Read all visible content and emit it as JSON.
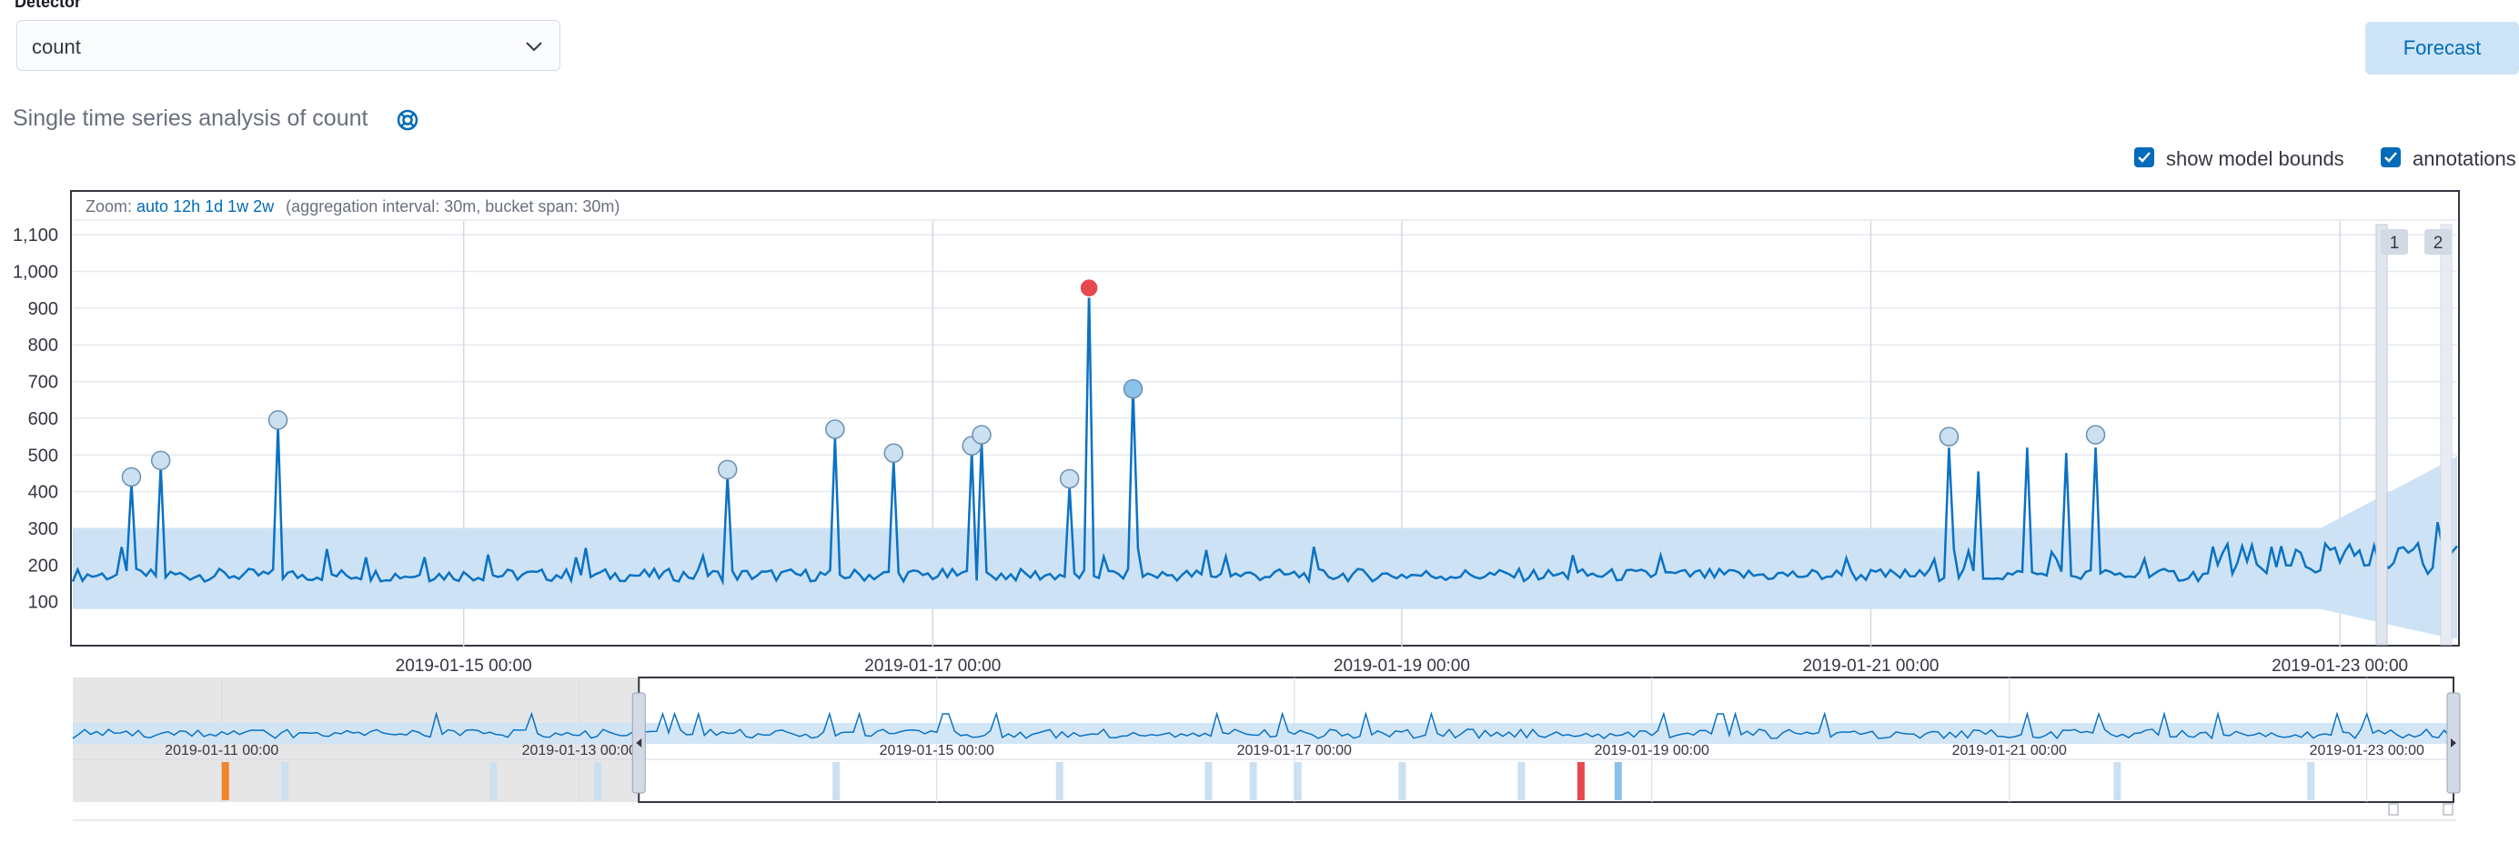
{
  "detector": {
    "label": "Detector",
    "value": "count"
  },
  "forecast_label": "Forecast",
  "page_title": "Single time series analysis of count",
  "checkboxes": {
    "model_bounds": "show model bounds",
    "annotations": "annotations"
  },
  "zoom": {
    "prefix": "Zoom:",
    "options": [
      "auto",
      "12h",
      "1d",
      "1w",
      "2w"
    ],
    "suffix": "(aggregation interval: 30m, bucket span: 30m)"
  },
  "annotation_badges": [
    "1",
    "2"
  ],
  "colors": {
    "line": "#0b72c4",
    "bounds": "#cde3f5",
    "critical": "#e7474e",
    "major": "#f0852c",
    "anomaly_light": "#cbe0f0",
    "anomaly_mid": "#8bc2e9",
    "accent": "#006bb8"
  },
  "chart_data": {
    "type": "line",
    "title": "",
    "xlabel": "",
    "ylabel": "",
    "yticks": [
      100,
      200,
      300,
      400,
      500,
      600,
      700,
      800,
      900,
      1000,
      1100
    ],
    "ylim": [
      0,
      1150
    ],
    "xlim": [
      "2019-01-13T08:00",
      "2019-01-23T12:00"
    ],
    "xticks": [
      "2019-01-15 00:00",
      "2019-01-17 00:00",
      "2019-01-19 00:00",
      "2019-01-21 00:00",
      "2019-01-23 00:00"
    ],
    "grid": true,
    "baseline": 165,
    "model_bounds": {
      "lower": 80,
      "upper": 300
    },
    "spikes": [
      {
        "t": "2019-01-13T14:00",
        "v": 425
      },
      {
        "t": "2019-01-13T17:00",
        "v": 470
      },
      {
        "t": "2019-01-14T05:00",
        "v": 580
      },
      {
        "t": "2019-01-16T03:00",
        "v": 445
      },
      {
        "t": "2019-01-16T14:00",
        "v": 550
      },
      {
        "t": "2019-01-16T20:00",
        "v": 485
      },
      {
        "t": "2019-01-17T04:00",
        "v": 510
      },
      {
        "t": "2019-01-17T05:00",
        "v": 540
      },
      {
        "t": "2019-01-17T14:00",
        "v": 415
      },
      {
        "t": "2019-01-17T16:00",
        "v": 950
      },
      {
        "t": "2019-01-17T20:30",
        "v": 685
      },
      {
        "t": "2019-01-21T08:00",
        "v": 520
      },
      {
        "t": "2019-01-21T11:00",
        "v": 455
      },
      {
        "t": "2019-01-21T16:00",
        "v": 520
      },
      {
        "t": "2019-01-21T20:00",
        "v": 505
      },
      {
        "t": "2019-01-21T23:00",
        "v": 520
      }
    ],
    "anomaly_markers": [
      {
        "t": "2019-01-13T14:00",
        "v": 440,
        "severity": "low"
      },
      {
        "t": "2019-01-13T17:00",
        "v": 485,
        "severity": "low"
      },
      {
        "t": "2019-01-14T05:00",
        "v": 595,
        "severity": "low"
      },
      {
        "t": "2019-01-16T03:00",
        "v": 460,
        "severity": "low"
      },
      {
        "t": "2019-01-16T14:00",
        "v": 570,
        "severity": "low"
      },
      {
        "t": "2019-01-16T20:00",
        "v": 505,
        "severity": "low"
      },
      {
        "t": "2019-01-17T04:00",
        "v": 525,
        "severity": "low"
      },
      {
        "t": "2019-01-17T05:00",
        "v": 555,
        "severity": "low"
      },
      {
        "t": "2019-01-17T14:00",
        "v": 435,
        "severity": "low"
      },
      {
        "t": "2019-01-17T16:00",
        "v": 955,
        "severity": "critical"
      },
      {
        "t": "2019-01-17T20:30",
        "v": 680,
        "severity": "warning"
      },
      {
        "t": "2019-01-21T08:00",
        "v": 550,
        "severity": "low"
      },
      {
        "t": "2019-01-21T23:00",
        "v": 555,
        "severity": "low"
      }
    ],
    "context": {
      "xlim": [
        "2019-01-10T04:00",
        "2019-01-23T12:00"
      ],
      "xticks": [
        "2019-01-11 00:00",
        "2019-01-13 00:00",
        "2019-01-15 00:00",
        "2019-01-17 00:00",
        "2019-01-19 00:00",
        "2019-01-21 00:00",
        "2019-01-23 00:00"
      ],
      "selection": [
        "2019-01-13T08:00",
        "2019-01-23T12:00"
      ],
      "swimlane": [
        {
          "t": "2019-01-11T00:00",
          "severity": "major"
        },
        {
          "t": "2019-01-11T08:00",
          "severity": "low"
        },
        {
          "t": "2019-01-12T12:00",
          "severity": "low"
        },
        {
          "t": "2019-01-13T02:00",
          "severity": "low"
        },
        {
          "t": "2019-01-14T10:00",
          "severity": "low"
        },
        {
          "t": "2019-01-15T16:00",
          "severity": "low"
        },
        {
          "t": "2019-01-16T12:00",
          "severity": "low"
        },
        {
          "t": "2019-01-16T18:00",
          "severity": "low"
        },
        {
          "t": "2019-01-17T00:00",
          "severity": "low"
        },
        {
          "t": "2019-01-17T14:00",
          "severity": "low"
        },
        {
          "t": "2019-01-18T06:00",
          "severity": "low"
        },
        {
          "t": "2019-01-18T14:00",
          "severity": "critical"
        },
        {
          "t": "2019-01-18T19:00",
          "severity": "warning"
        },
        {
          "t": "2019-01-21T14:00",
          "severity": "low"
        },
        {
          "t": "2019-01-22T16:00",
          "severity": "low"
        }
      ]
    }
  }
}
